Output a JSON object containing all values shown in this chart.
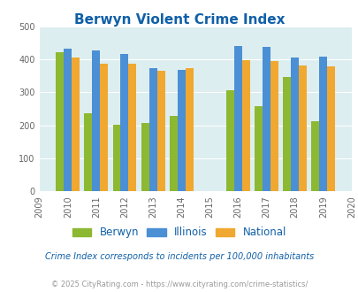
{
  "title": "Berwyn Violent Crime Index",
  "years": [
    2010,
    2011,
    2012,
    2013,
    2014,
    2016,
    2017,
    2018,
    2019
  ],
  "berwyn": [
    422,
    237,
    202,
    208,
    228,
    305,
    257,
    347,
    212
  ],
  "illinois": [
    433,
    428,
    415,
    372,
    369,
    440,
    438,
    405,
    408
  ],
  "national": [
    405,
    387,
    387,
    366,
    374,
    397,
    394,
    380,
    379
  ],
  "berwyn_color": "#8db832",
  "illinois_color": "#4b8fd4",
  "national_color": "#f0a830",
  "bg_color": "#ddeef0",
  "title_color": "#1060a8",
  "xlabel_years": [
    2009,
    2010,
    2011,
    2012,
    2013,
    2014,
    2015,
    2016,
    2017,
    2018,
    2019,
    2020
  ],
  "ylim": [
    0,
    500
  ],
  "yticks": [
    0,
    100,
    200,
    300,
    400,
    500
  ],
  "bar_width": 0.28,
  "legend_labels": [
    "Berwyn",
    "Illinois",
    "National"
  ],
  "footnote1": "Crime Index corresponds to incidents per 100,000 inhabitants",
  "footnote2": "© 2025 CityRating.com - https://www.cityrating.com/crime-statistics/",
  "footnote1_color": "#1060a8",
  "footnote2_color": "#999999"
}
